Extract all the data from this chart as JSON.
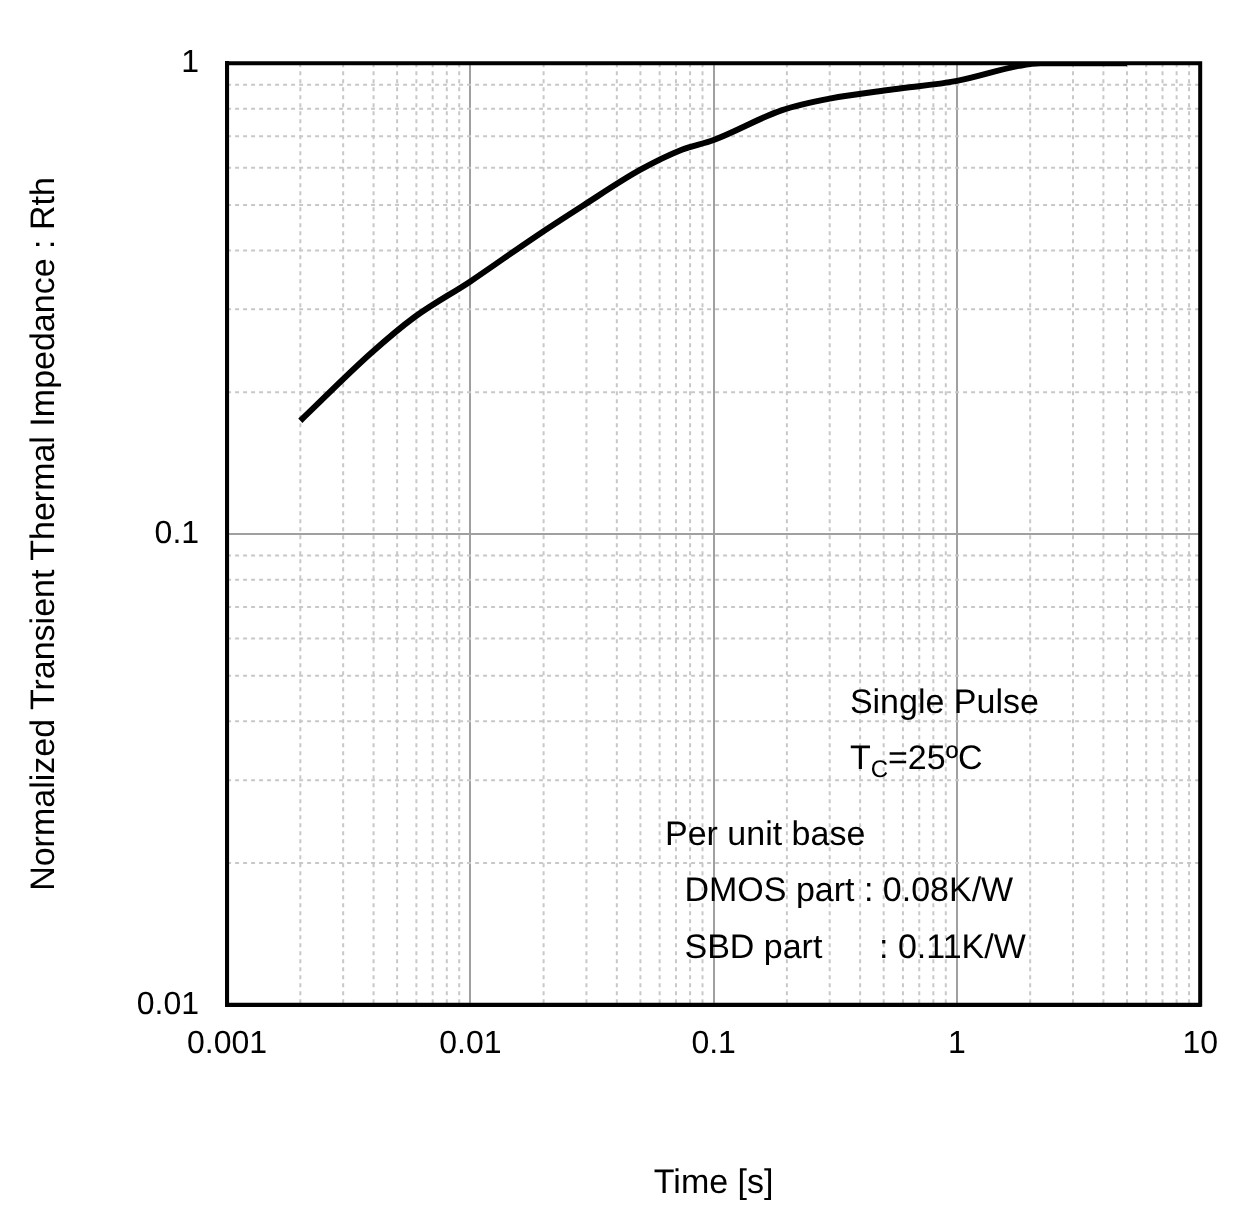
{
  "chart_data": {
    "type": "line",
    "xlabel": "Time [s]",
    "ylabel": "Normalized Transient Thermal Impedance : Rth",
    "x": [
      0.002,
      0.0039,
      0.0059,
      0.01,
      0.018,
      0.029,
      0.05,
      0.074,
      0.1,
      0.19,
      0.3,
      0.55,
      1,
      1.8,
      2.2,
      5
    ],
    "series": [
      {
        "color": "#000000",
        "values": [
          0.174,
          0.242,
          0.289,
          0.344,
          0.424,
          0.498,
          0.594,
          0.655,
          0.687,
          0.794,
          0.841,
          0.88,
          0.917,
          0.987,
          1.0,
          1.0
        ]
      }
    ],
    "xlim": [
      0.001,
      10
    ],
    "ylim": [
      0.01,
      1
    ],
    "xticks": [
      0.001,
      0.01,
      0.1,
      1,
      10
    ],
    "yticks": [
      0.01,
      0.1,
      1
    ],
    "log": "xy",
    "grid": true,
    "legend": false,
    "marker": "none",
    "line_style": "solid",
    "annotations": [
      "Single Pulse",
      "T$_{C}$=25ºC",
      "Per unit base",
      "DMOS part : 0.08K/W",
      "SBD part   : 0.11K/W"
    ]
  }
}
